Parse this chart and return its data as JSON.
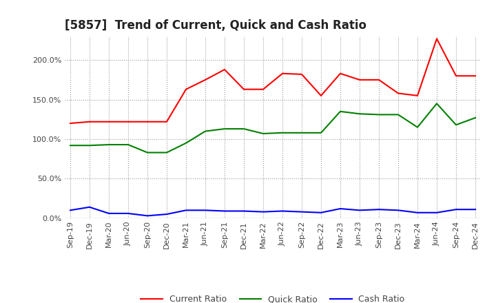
{
  "title": "[5857]  Trend of Current, Quick and Cash Ratio",
  "labels": [
    "Sep-19",
    "Dec-19",
    "Mar-20",
    "Jun-20",
    "Sep-20",
    "Dec-20",
    "Mar-21",
    "Jun-21",
    "Sep-21",
    "Dec-21",
    "Mar-22",
    "Jun-22",
    "Sep-22",
    "Dec-22",
    "Mar-23",
    "Jun-23",
    "Sep-23",
    "Dec-23",
    "Mar-24",
    "Jun-24",
    "Sep-24",
    "Dec-24"
  ],
  "current_ratio": [
    120,
    122,
    122,
    122,
    122,
    122,
    163,
    175,
    188,
    163,
    163,
    183,
    182,
    155,
    183,
    175,
    175,
    158,
    155,
    227,
    180,
    180
  ],
  "quick_ratio": [
    92,
    92,
    93,
    93,
    83,
    83,
    95,
    110,
    113,
    113,
    107,
    108,
    108,
    108,
    135,
    132,
    131,
    131,
    115,
    145,
    118,
    127
  ],
  "cash_ratio": [
    10,
    14,
    6,
    6,
    3,
    5,
    10,
    10,
    9,
    9,
    8,
    9,
    8,
    7,
    12,
    10,
    11,
    10,
    7,
    7,
    11,
    11
  ],
  "current_color": "#FF0000",
  "quick_color": "#008000",
  "cash_color": "#0000FF",
  "background_color": "#FFFFFF",
  "grid_color": "#999999",
  "ylim": [
    0,
    230
  ],
  "yticks": [
    0,
    50,
    100,
    150,
    200
  ],
  "ytick_labels": [
    "0.0%",
    "50.0%",
    "100.0%",
    "150.0%",
    "200.0%"
  ],
  "legend_labels": [
    "Current Ratio",
    "Quick Ratio",
    "Cash Ratio"
  ],
  "line_width": 1.5,
  "tick_fontsize": 8,
  "title_fontsize": 12,
  "legend_fontsize": 9
}
